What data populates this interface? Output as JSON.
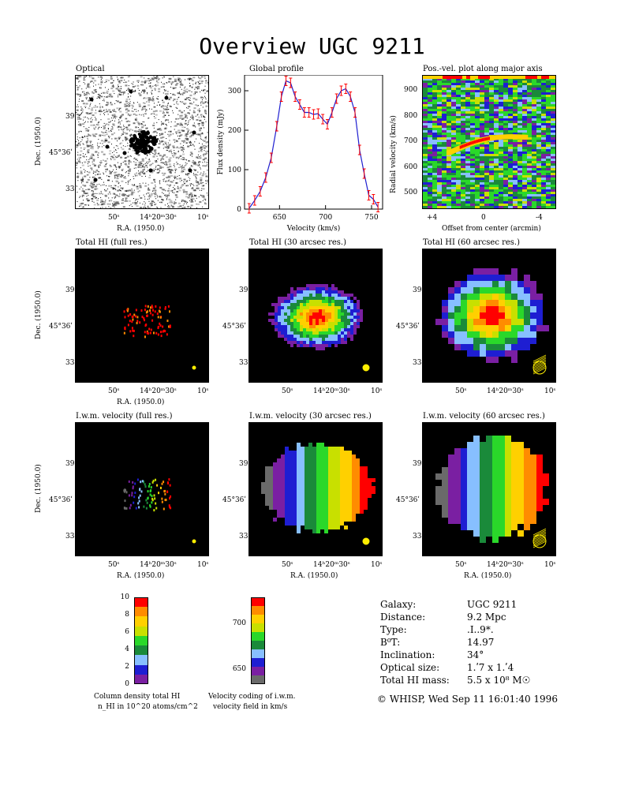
{
  "title": "Overview UGC 9211",
  "panels": {
    "optical": "Optical",
    "global_profile": "Global profile",
    "pv_plot": "Pos.-vel. plot along major axis",
    "total_full": "Total HI (full res.)",
    "total_30": "Total HI (30 arcsec res.)",
    "total_60": "Total HI (60 arcsec res.)",
    "vel_full": "I.w.m. velocity (full res.)",
    "vel_30": "I.w.m. velocity (30 arcsec res.)",
    "vel_60": "I.w.m. velocity (60 arcsec res.)"
  },
  "axes": {
    "dec_label": "Dec. (1950.0)",
    "ra_label": "R.A. (1950.0)",
    "dec_ticks": [
      "39ʹ",
      "45°36ʹ",
      "33ʹ"
    ],
    "ra_ticks": [
      "50ˢ",
      "14ʰ20ᵐ30ˢ",
      "10ˢ"
    ],
    "profile_xlabel": "Velocity (km/s)",
    "profile_ylabel": "Flux density (mJy)",
    "pv_xlabel": "Offset from center (arcmin)",
    "pv_ylabel": "Radial velocity (km/s)",
    "pv_xticks": [
      "+4",
      "0",
      "-4"
    ],
    "pv_yticks": [
      "900",
      "800",
      "700",
      "600",
      "500"
    ]
  },
  "chart_data": {
    "type": "line",
    "title": "Global profile",
    "xlabel": "Velocity (km/s)",
    "ylabel": "Flux density (mJy)",
    "xlim": [
      612,
      762
    ],
    "ylim": [
      0,
      340
    ],
    "xticks": [
      650,
      700,
      750
    ],
    "yticks": [
      0,
      100,
      200,
      300
    ],
    "x": [
      617,
      623,
      629,
      635,
      641,
      647,
      652,
      657,
      662,
      667,
      672,
      677,
      682,
      687,
      692,
      697,
      702,
      707,
      712,
      717,
      722,
      727,
      732,
      737,
      742,
      747,
      752,
      757
    ],
    "values": [
      2,
      22,
      45,
      80,
      130,
      210,
      285,
      325,
      320,
      285,
      265,
      245,
      245,
      240,
      242,
      228,
      215,
      245,
      280,
      300,
      305,
      285,
      245,
      150,
      90,
      35,
      25,
      5
    ]
  },
  "colorbars": {
    "density": {
      "ticks": [
        "10",
        "8",
        "6",
        "4",
        "2",
        "0"
      ],
      "colors": [
        "#7a1fa2",
        "#1e1ed2",
        "#87bfff",
        "#1a8a3a",
        "#2ad82a",
        "#c8e000",
        "#ffd000",
        "#ff8c00",
        "#ff0000"
      ],
      "caption1": "Column density total HI",
      "caption2": "n_HI in 10^20 atoms/cm^2"
    },
    "velocity": {
      "ticks": [
        "700",
        "650"
      ],
      "colors": [
        "#6a6a6a",
        "#7a1fa2",
        "#1e1ed2",
        "#87bfff",
        "#1a8a3a",
        "#2ad82a",
        "#c8e000",
        "#ffd000",
        "#ff8c00",
        "#ff0000"
      ],
      "caption1": "Velocity coding of i.w.m.",
      "caption2": "velocity field in km/s"
    }
  },
  "info": {
    "galaxy_key": "Galaxy:",
    "galaxy_val": "UGC 9211",
    "distance_key": "Distance:",
    "distance_val": "9.2 Mpc",
    "type_key": "Type:",
    "type_val": ".I..9*.",
    "bt_key": "B⁰T:",
    "bt_val": "14.97",
    "incl_key": "Inclination:",
    "incl_val": "34°",
    "size_key": "Optical size:",
    "size_val": "1.ʹ7 x 1.ʹ4",
    "mass_key": "Total HI mass:",
    "mass_val": "5.5 x 10⁸ M☉"
  },
  "footer": "© WHISP, Wed Sep 11 16:01:40 1996",
  "colors": {
    "profile_line": "#1f1fd0",
    "profile_err": "#ff0000",
    "beam": "#ffee00"
  }
}
